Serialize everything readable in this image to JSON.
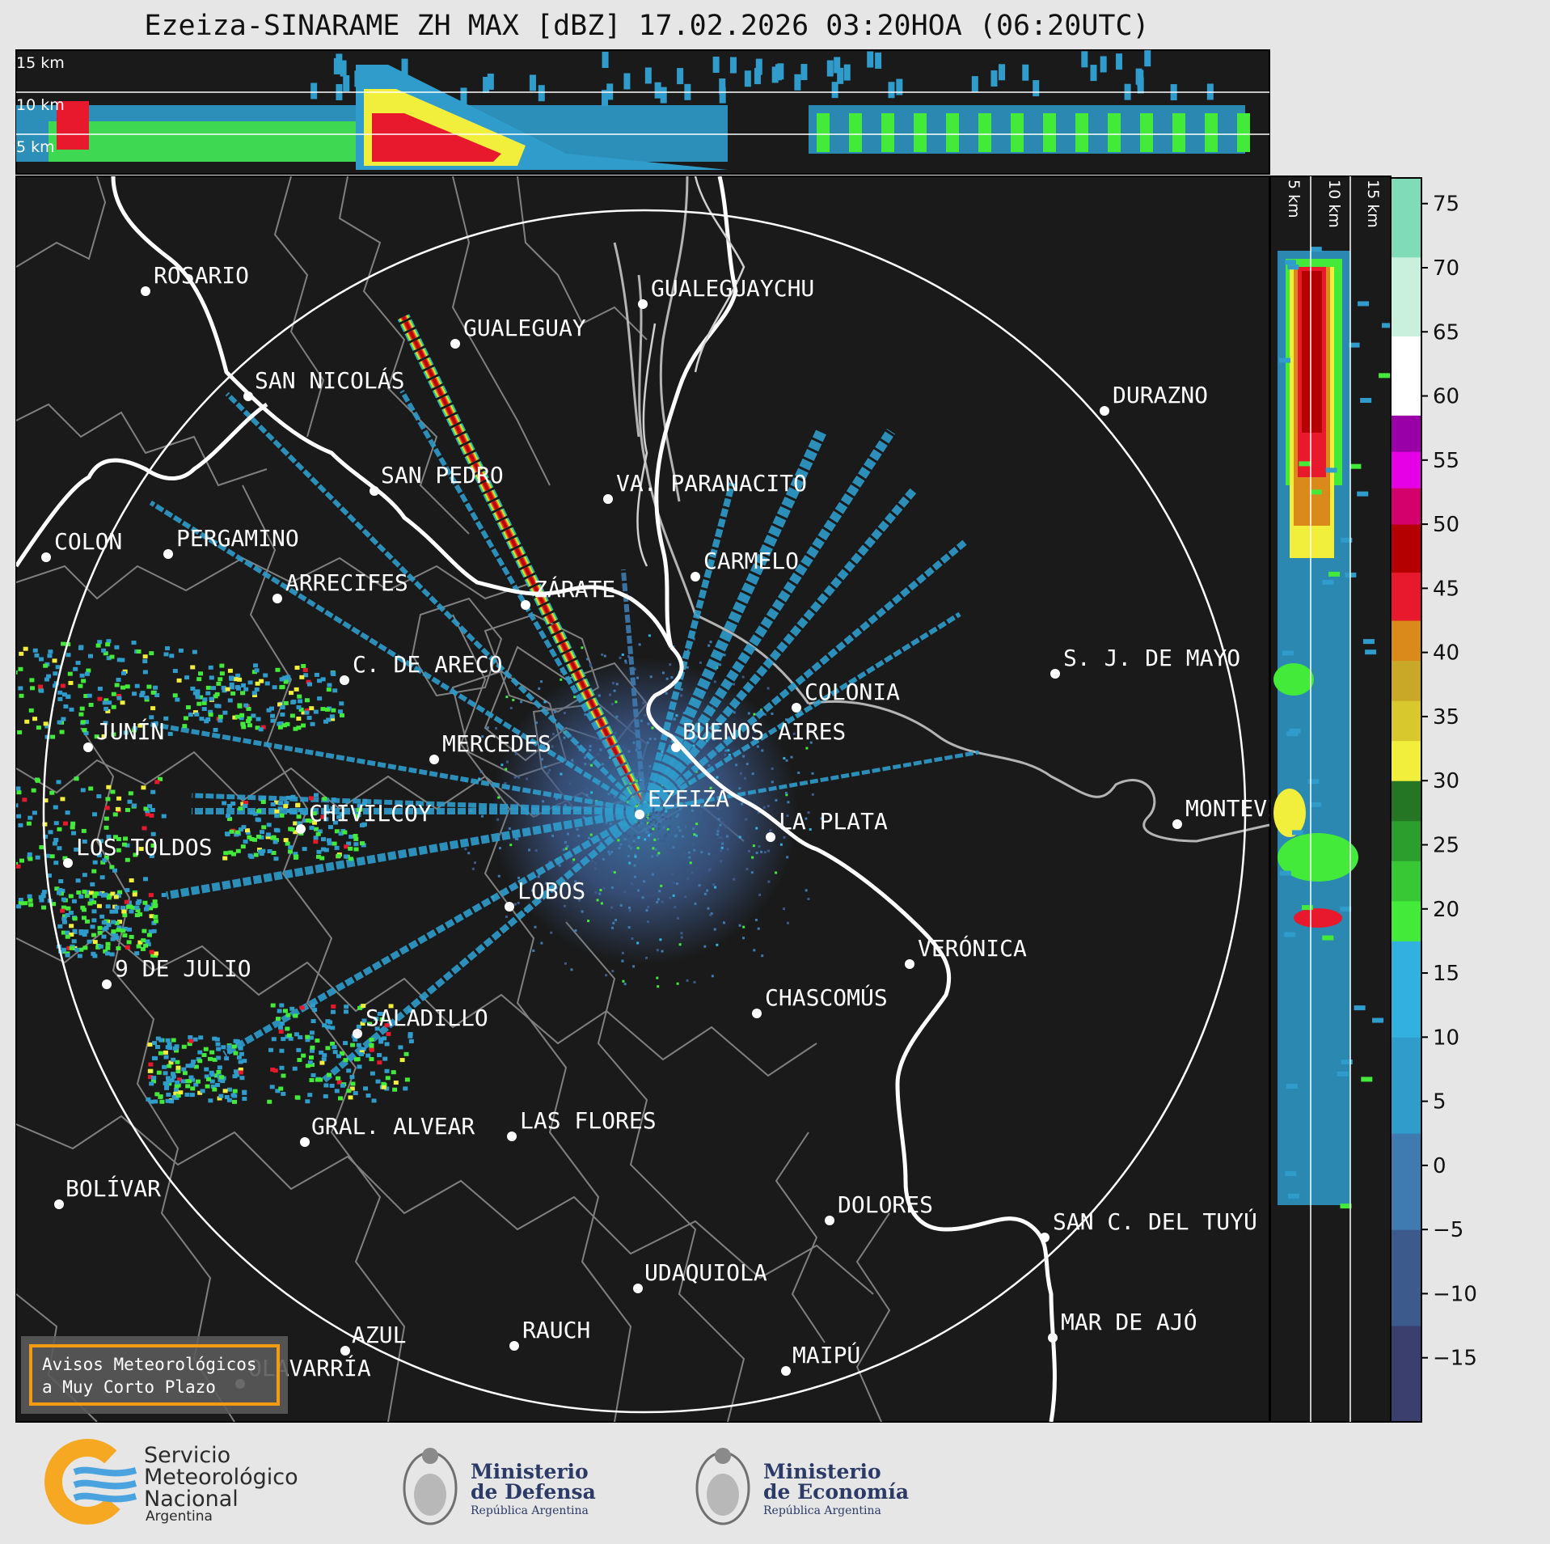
{
  "title": "Ezeiza-SINARAME ZH MAX [dBZ] 17.02.2026 03:20HOA (06:20UTC)",
  "top_section": {
    "height_labels": [
      "15 km",
      "10 km",
      "5 km"
    ]
  },
  "side_section": {
    "height_labels": [
      "5 km",
      "10 km",
      "15 km"
    ]
  },
  "colorbar": {
    "unit": "dBZ",
    "ticks": [
      "75",
      "70",
      "65",
      "60",
      "55",
      "50",
      "45",
      "40",
      "35",
      "30",
      "25",
      "20",
      "15",
      "10",
      "5",
      "0",
      "−5",
      "−10",
      "−15"
    ],
    "tick_values": [
      75,
      70,
      65,
      60,
      55,
      50,
      45,
      40,
      35,
      30,
      25,
      20,
      15,
      10,
      5,
      0,
      -5,
      -10,
      -15
    ],
    "range": [
      -20,
      77
    ],
    "stops": [
      {
        "from": -20,
        "to": 17.5,
        "colors": [
          "#3b3f6e",
          "#3d5a8c",
          "#3f7bb0",
          "#2f9ccc",
          "#32b0df"
        ]
      },
      {
        "from": 17.5,
        "to": 30,
        "colors": [
          "#44ea3a",
          "#38c836",
          "#2c9e2e",
          "#247524"
        ]
      },
      {
        "from": 30,
        "to": 42.5,
        "colors": [
          "#f2ee3c",
          "#d8c82e",
          "#c9a828",
          "#d98a1a"
        ]
      },
      {
        "from": 42.5,
        "to": 50,
        "colors": [
          "#e8192c",
          "#b40000"
        ]
      },
      {
        "from": 50,
        "to": 58.5,
        "colors": [
          "#d4006c",
          "#e600e6",
          "#9a00a8"
        ]
      },
      {
        "from": 58.5,
        "to": 77,
        "colors": [
          "#ffffff",
          "#c8f0dc",
          "#80dcb8"
        ]
      }
    ]
  },
  "cities": [
    {
      "name": "ROSARIO"
    },
    {
      "name": "GUALEGUAYCHU"
    },
    {
      "name": "GUALEGUAY"
    },
    {
      "name": "SAN NICOLÁS"
    },
    {
      "name": "DURAZNO"
    },
    {
      "name": "SAN PEDRO"
    },
    {
      "name": "VA. PARANACITO"
    },
    {
      "name": "COLON"
    },
    {
      "name": "PERGAMINO"
    },
    {
      "name": "CARMELO"
    },
    {
      "name": "ARRECIFES"
    },
    {
      "name": "ZÁRATE"
    },
    {
      "name": "C. DE ARECO"
    },
    {
      "name": "S. J. DE MAYO"
    },
    {
      "name": "COLONIA"
    },
    {
      "name": "JUNÍN"
    },
    {
      "name": "BUENOS AIRES"
    },
    {
      "name": "MERCEDES"
    },
    {
      "name": "EZEIZA"
    },
    {
      "name": "MONTEVIDEO"
    },
    {
      "name": "CHIVILCOY"
    },
    {
      "name": "LA PLATA"
    },
    {
      "name": "LOS TOLDOS"
    },
    {
      "name": "LOBOS"
    },
    {
      "name": "VERÓNICA"
    },
    {
      "name": "9 DE JULIO"
    },
    {
      "name": "CHASCOMÚS"
    },
    {
      "name": "SALADILLO"
    },
    {
      "name": "GRAL. ALVEAR"
    },
    {
      "name": "LAS FLORES"
    },
    {
      "name": "BOLÍVAR"
    },
    {
      "name": "DOLORES"
    },
    {
      "name": "SAN C. DEL TUYÚ"
    },
    {
      "name": "UDAQUIOLA"
    },
    {
      "name": "MAR DE AJÓ"
    },
    {
      "name": "AZUL"
    },
    {
      "name": "RAUCH"
    },
    {
      "name": "MAIPÚ"
    },
    {
      "name": "OLAVARRÍA"
    }
  ],
  "badge": {
    "line1": "Avisos Meteorológicos",
    "line2": "a Muy Corto Plazo"
  },
  "logos": {
    "smn": {
      "line1": "Servicio",
      "line2": "Meteorológico",
      "line3": "Nacional",
      "line4": "Argentina"
    },
    "defensa": {
      "line1": "Ministerio",
      "line2": "de Defensa",
      "line3": "República Argentina"
    },
    "economia": {
      "line1": "Ministerio",
      "line2": "de Economía",
      "line3": "República Argentina"
    }
  },
  "colors": {
    "background": "#e6e6e6",
    "map_bg": "#1a1a1a",
    "smn_orange": "#f7a823",
    "smn_blue": "#4aa3df",
    "ministry_navy": "#2b3a67",
    "badge_border": "#f39c12"
  }
}
